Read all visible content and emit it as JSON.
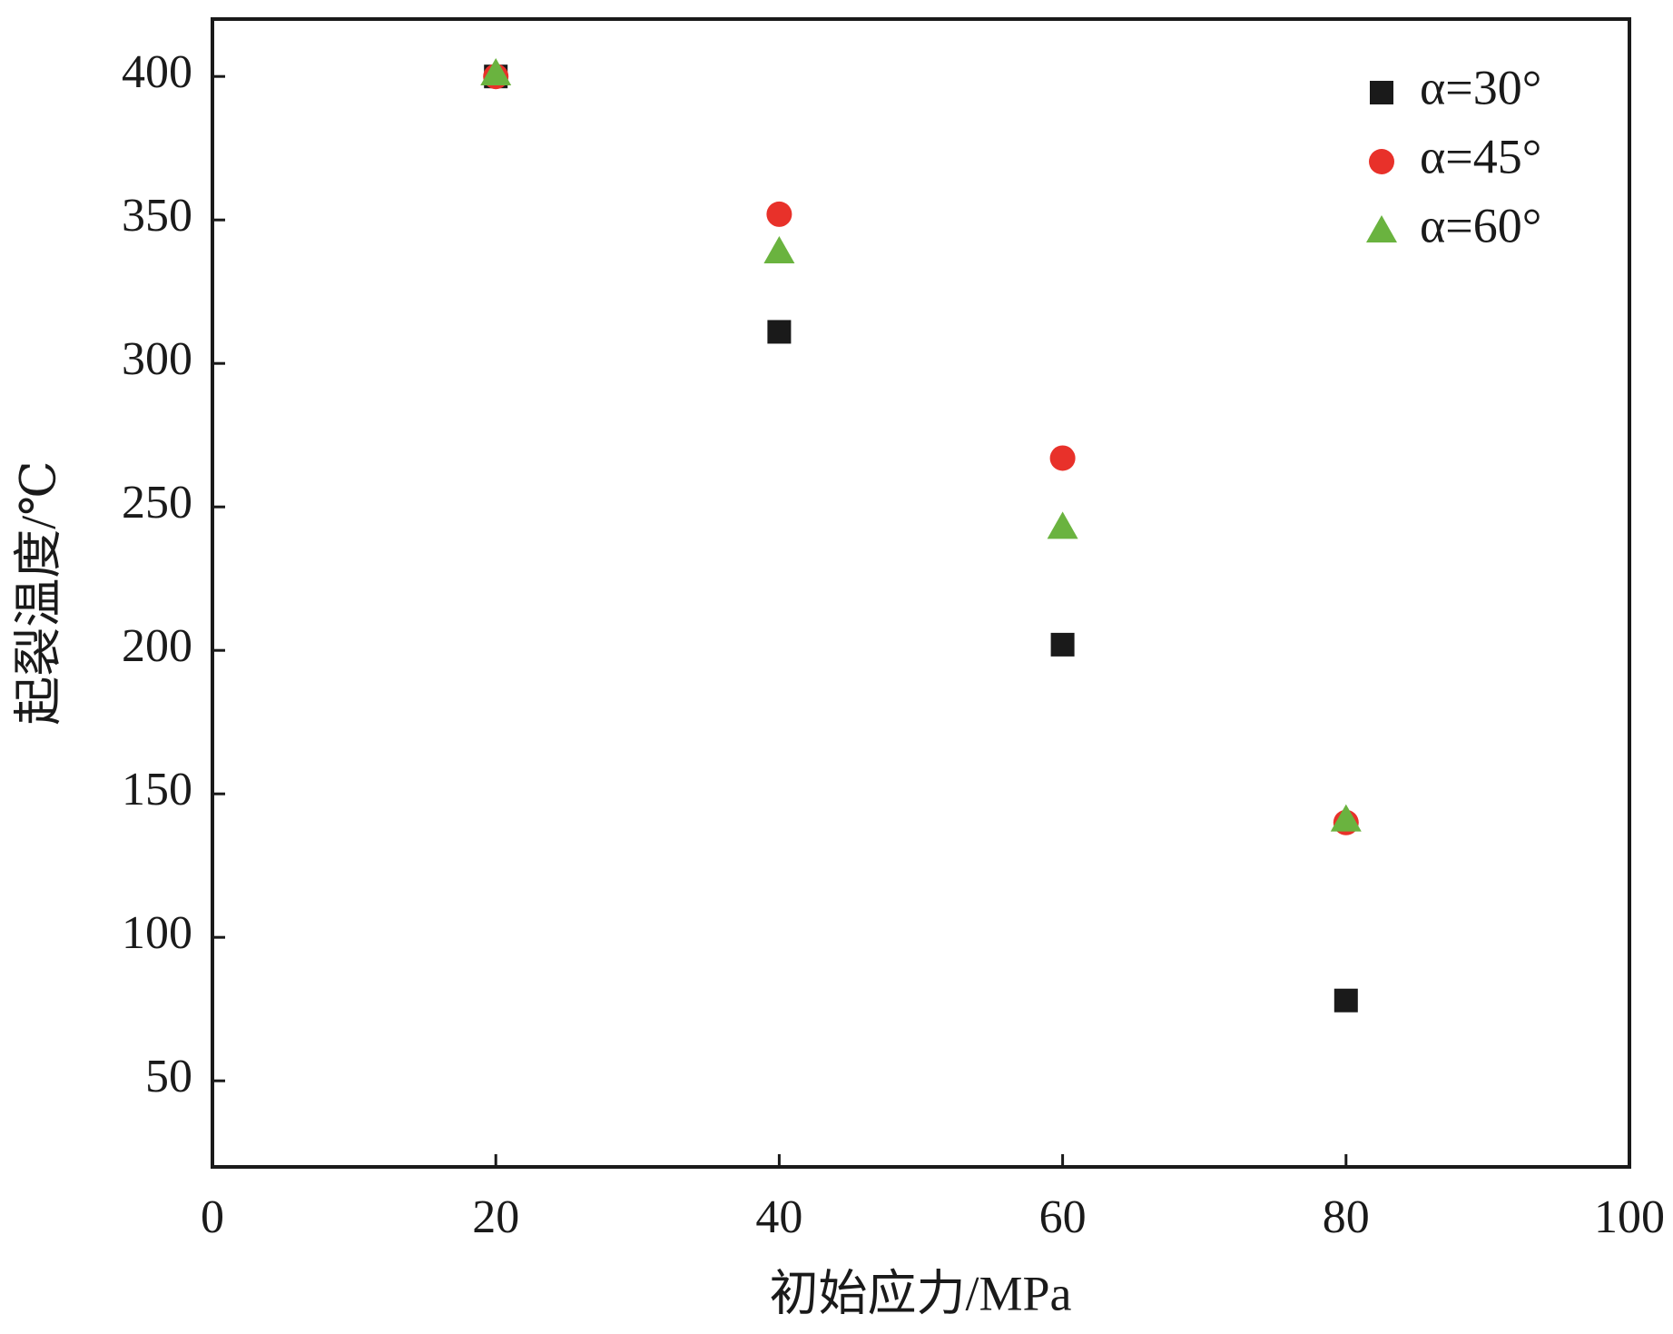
{
  "chart_data": {
    "type": "scatter",
    "x_label": "初始应力/MPa",
    "y_label": "起裂温度/℃",
    "xlim": [
      0,
      100
    ],
    "xticks": [
      0,
      20,
      40,
      60,
      80,
      100
    ],
    "ylim": [
      20,
      420
    ],
    "yticks": [
      50,
      100,
      150,
      200,
      250,
      300,
      350,
      400
    ],
    "legend": "upper right",
    "x": [
      20,
      40,
      60,
      80
    ],
    "series": [
      {
        "name": "α=30°",
        "color": "#1a1a1a",
        "marker": "square",
        "values": [
          400,
          311,
          202,
          78
        ]
      },
      {
        "name": "α=45°",
        "color": "#e8312a",
        "marker": "circle",
        "values": [
          400,
          352,
          267,
          140
        ]
      },
      {
        "name": "α=60°",
        "color": "#6ab33f",
        "marker": "triangle",
        "values": [
          401,
          339,
          243,
          141
        ]
      }
    ]
  }
}
